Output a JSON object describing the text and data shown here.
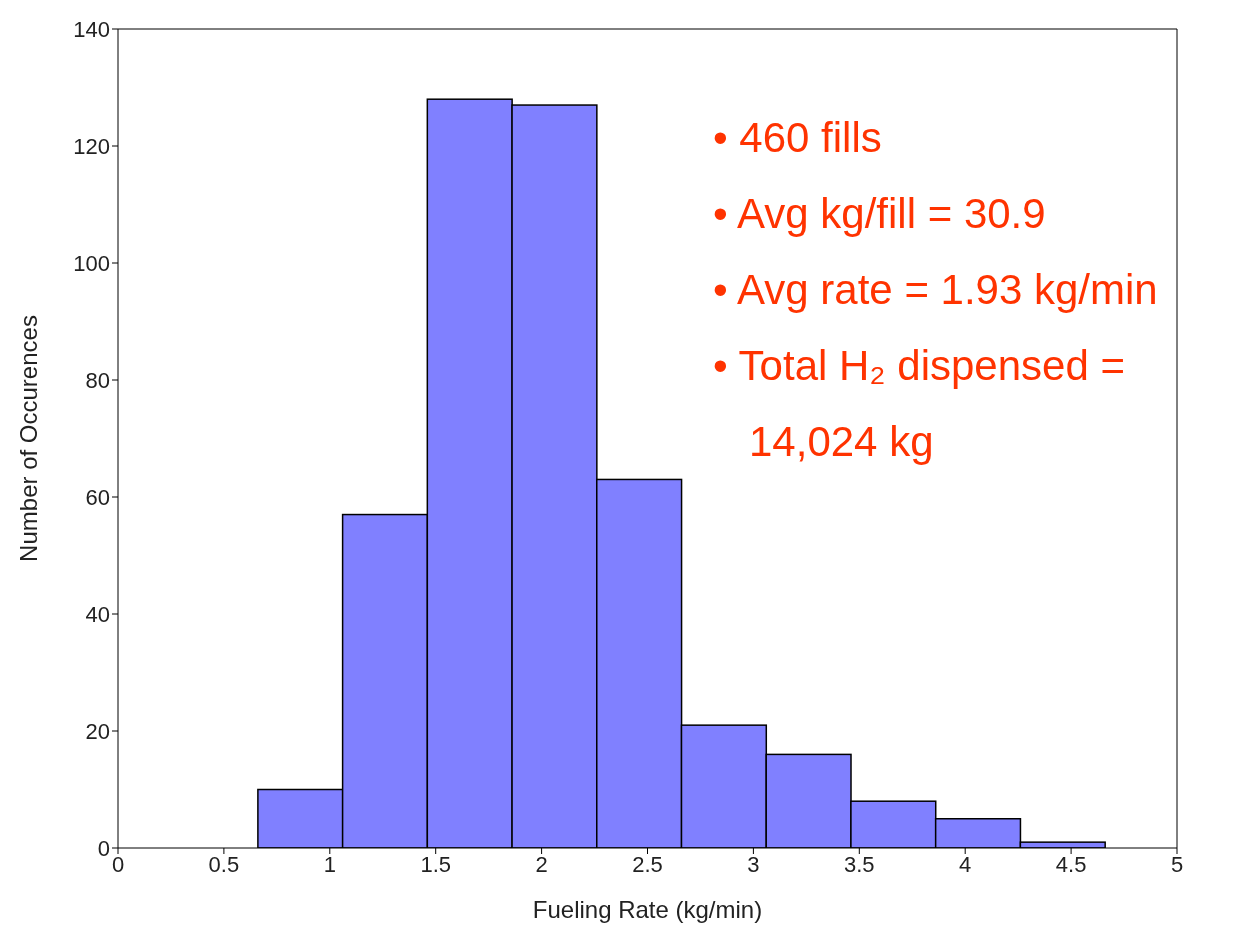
{
  "chart_data": {
    "type": "histogram",
    "xlabel": "Fueling Rate (kg/min)",
    "ylabel": "Number of Occurences",
    "bins": [
      0.66,
      1.06,
      1.46,
      1.86,
      2.26,
      2.66,
      3.06,
      3.46,
      3.86,
      4.26,
      4.66
    ],
    "values": [
      10,
      57,
      128,
      127,
      63,
      21,
      16,
      8,
      5,
      1
    ],
    "color": "#8080ff",
    "xlim": [
      0,
      5
    ],
    "xticks": [
      0,
      0.5,
      1,
      1.5,
      2,
      2.5,
      3,
      3.5,
      4,
      4.5,
      5
    ],
    "ylim": [
      0,
      140
    ],
    "yticks": [
      0,
      20,
      40,
      60,
      80,
      100,
      120,
      140
    ],
    "grid": false,
    "annotations": [
      "• 460 fills",
      "• Avg kg/fill = 30.9",
      "• Avg rate = 1.93 kg/min",
      "• Total H₂ dispensed = 14,024 kg"
    ]
  }
}
